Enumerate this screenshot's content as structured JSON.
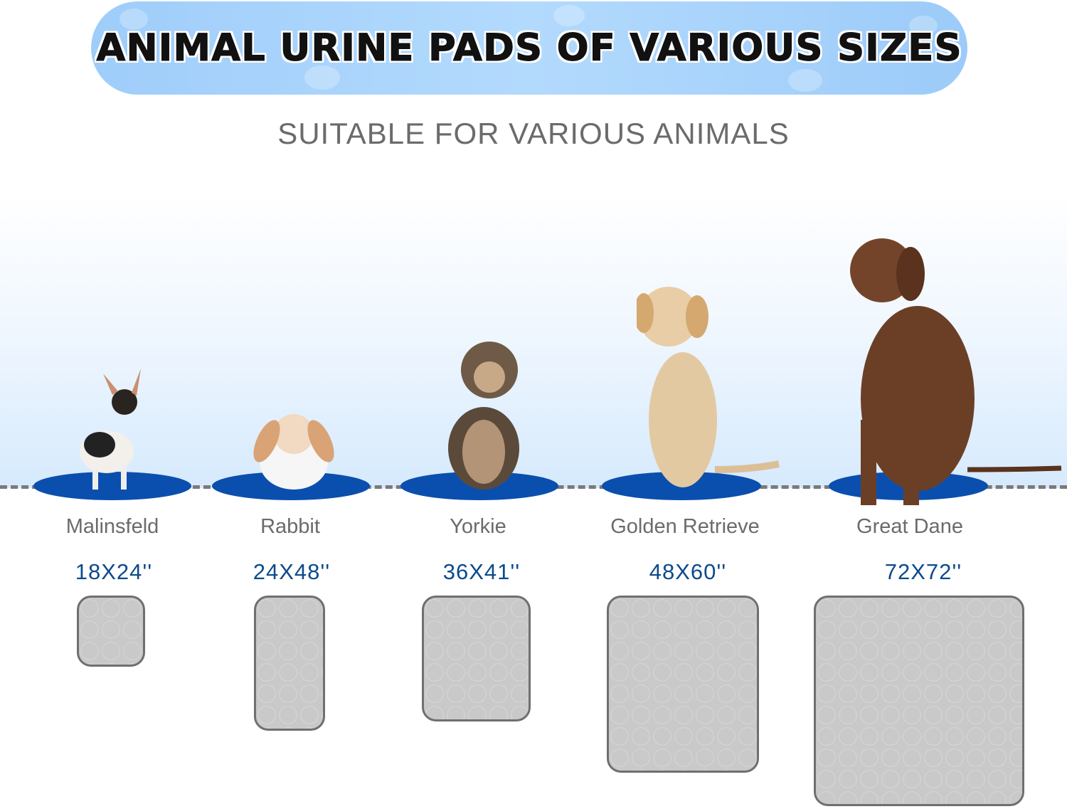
{
  "banner": {
    "title": "ANIMAL URINE PADS OF VARIOUS SIZES"
  },
  "subtitle": "SUITABLE FOR VARIOUS ANIMALS",
  "colors": {
    "mat": "#0b4fae",
    "size_text": "#0d4a8c",
    "label_text": "#6b6b6b",
    "pad": "#c9c9c9"
  },
  "animals": [
    {
      "name": "Malinsfeld",
      "size": "18X24''",
      "image": "chihuahua-photo"
    },
    {
      "name": "Rabbit",
      "size": "24X48''",
      "image": "lop-rabbit-photo"
    },
    {
      "name": "Yorkie",
      "size": "36X41''",
      "image": "yorkie-photo"
    },
    {
      "name": "Golden Retrieve",
      "size": "48X60''",
      "image": "golden-retriever-photo"
    },
    {
      "name": "Great Dane",
      "size": "72X72''",
      "image": "great-dane-photo"
    }
  ]
}
